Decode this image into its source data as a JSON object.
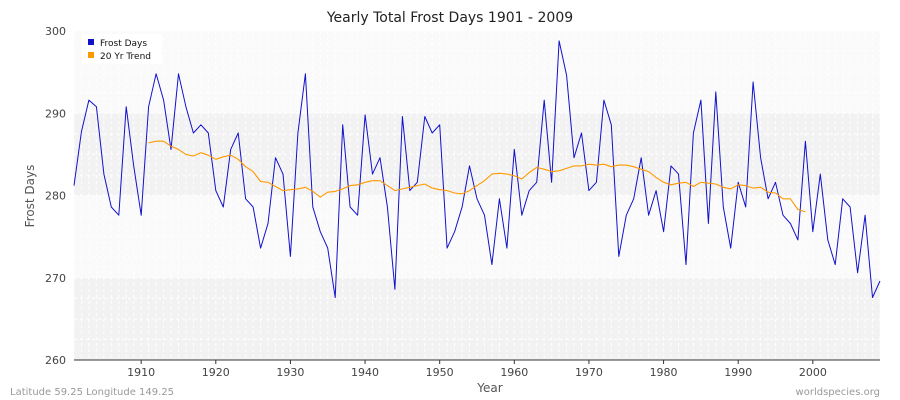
{
  "chart_data": {
    "type": "line",
    "title": "Yearly Total Frost Days 1901 - 2009",
    "xlabel": "Year",
    "ylabel": "Frost Days",
    "xlim": [
      1901,
      2009
    ],
    "ylim": [
      260,
      300
    ],
    "x_ticks": [
      1910,
      1920,
      1930,
      1940,
      1950,
      1960,
      1970,
      1980,
      1990,
      2000
    ],
    "y_ticks": [
      260,
      270,
      280,
      290,
      300
    ],
    "grid": true,
    "legend_position": "top-left",
    "series": [
      {
        "name": "Frost Days",
        "color": "#1111cc",
        "x": [
          1901,
          1902,
          1903,
          1904,
          1905,
          1906,
          1907,
          1908,
          1909,
          1910,
          1911,
          1912,
          1913,
          1914,
          1915,
          1916,
          1917,
          1918,
          1919,
          1920,
          1921,
          1922,
          1923,
          1924,
          1925,
          1926,
          1927,
          1928,
          1929,
          1930,
          1931,
          1932,
          1933,
          1934,
          1935,
          1936,
          1937,
          1938,
          1939,
          1940,
          1941,
          1942,
          1943,
          1944,
          1945,
          1946,
          1947,
          1948,
          1949,
          1950,
          1951,
          1952,
          1953,
          1954,
          1955,
          1956,
          1957,
          1958,
          1959,
          1960,
          1961,
          1962,
          1963,
          1964,
          1965,
          1966,
          1967,
          1968,
          1969,
          1970,
          1971,
          1972,
          1973,
          1974,
          1975,
          1976,
          1977,
          1978,
          1979,
          1980,
          1981,
          1982,
          1983,
          1984,
          1985,
          1986,
          1987,
          1988,
          1989,
          1990,
          1991,
          1992,
          1993,
          1994,
          1995,
          1996,
          1997,
          1998,
          1999,
          2000,
          2001,
          2002,
          2003,
          2004,
          2005,
          2006,
          2007,
          2008,
          2009
        ],
        "values": [
          281.2,
          287.8,
          291.6,
          290.8,
          282.6,
          278.6,
          277.6,
          290.8,
          283.6,
          277.6,
          290.8,
          294.8,
          291.6,
          285.6,
          294.8,
          290.8,
          287.6,
          288.6,
          287.6,
          280.6,
          278.6,
          285.6,
          287.6,
          279.6,
          278.6,
          273.6,
          276.6,
          284.6,
          282.6,
          272.6,
          287.6,
          294.8,
          278.6,
          275.6,
          273.6,
          267.6,
          288.6,
          278.6,
          277.6,
          289.8,
          282.6,
          284.6,
          278.6,
          268.6,
          289.6,
          280.6,
          281.6,
          289.6,
          287.6,
          288.6,
          273.6,
          275.6,
          278.6,
          283.6,
          279.6,
          277.6,
          271.6,
          279.6,
          273.6,
          285.6,
          277.6,
          280.6,
          281.6,
          291.6,
          281.6,
          298.8,
          294.6,
          284.6,
          287.6,
          280.6,
          281.6,
          291.6,
          288.6,
          272.6,
          277.6,
          279.6,
          284.6,
          277.6,
          280.6,
          275.6,
          283.6,
          282.6,
          271.6,
          287.6,
          291.6,
          276.6,
          292.6,
          278.6,
          273.6,
          281.6,
          278.6,
          293.8,
          284.6,
          279.6,
          281.6,
          277.6,
          276.6,
          274.6,
          286.6,
          275.6,
          282.6,
          274.6,
          271.6,
          279.6,
          278.6,
          270.6,
          277.6,
          267.6,
          269.6
        ]
      },
      {
        "name": "20 Yr Trend",
        "color": "#ff9900",
        "x": [
          1911,
          1912,
          1913,
          1914,
          1915,
          1916,
          1917,
          1918,
          1919,
          1920,
          1921,
          1922,
          1923,
          1924,
          1925,
          1926,
          1927,
          1928,
          1929,
          1930,
          1931,
          1932,
          1933,
          1934,
          1935,
          1936,
          1937,
          1938,
          1939,
          1940,
          1941,
          1942,
          1943,
          1944,
          1945,
          1946,
          1947,
          1948,
          1949,
          1950,
          1951,
          1952,
          1953,
          1954,
          1955,
          1956,
          1957,
          1958,
          1959,
          1960,
          1961,
          1962,
          1963,
          1964,
          1965,
          1966,
          1967,
          1968,
          1969,
          1970,
          1971,
          1972,
          1973,
          1974,
          1975,
          1976,
          1977,
          1978,
          1979,
          1980,
          1981,
          1982,
          1983,
          1984,
          1985,
          1986,
          1987,
          1988,
          1989,
          1990,
          1991,
          1992,
          1993,
          1994,
          1995,
          1996,
          1997,
          1998,
          1999
        ],
        "values": [
          286.4,
          286.6,
          286.6,
          286.0,
          285.6,
          285.0,
          284.8,
          285.2,
          284.9,
          284.4,
          284.7,
          284.9,
          284.4,
          283.5,
          282.9,
          281.7,
          281.6,
          281.1,
          280.6,
          280.7,
          280.8,
          281.0,
          280.5,
          279.8,
          280.4,
          280.5,
          280.8,
          281.2,
          281.3,
          281.6,
          281.8,
          281.8,
          281.2,
          280.6,
          280.8,
          281.0,
          281.2,
          281.4,
          280.9,
          280.7,
          280.6,
          280.3,
          280.2,
          280.6,
          281.2,
          281.8,
          282.6,
          282.7,
          282.6,
          282.4,
          282.0,
          282.8,
          283.4,
          283.2,
          282.9,
          283.0,
          283.3,
          283.6,
          283.6,
          283.8,
          283.7,
          283.8,
          283.5,
          283.7,
          283.7,
          283.5,
          283.2,
          282.9,
          282.2,
          281.6,
          281.3,
          281.5,
          281.6,
          281.1,
          281.6,
          281.5,
          281.4,
          281.0,
          280.8,
          281.3,
          281.2,
          280.9,
          281.0,
          280.4,
          280.3,
          279.6,
          279.6,
          278.3,
          278.0
        ]
      }
    ]
  },
  "footer": {
    "left": "Latitude 59.25 Longitude 149.25",
    "right": "worldspecies.org"
  }
}
